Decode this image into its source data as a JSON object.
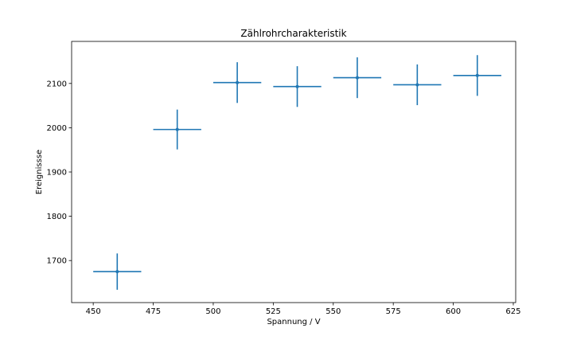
{
  "chart_data": {
    "type": "scatter",
    "title": "Zählrohrcharakteristik",
    "xlabel": "Spannung / V",
    "ylabel": "Ereignissse",
    "xlim": [
      441,
      626
    ],
    "ylim": [
      1605,
      2195
    ],
    "xticks": [
      450,
      475,
      500,
      525,
      550,
      575,
      600,
      625
    ],
    "yticks": [
      1700,
      1800,
      1900,
      2000,
      2100
    ],
    "grid": false,
    "color": "#1f77b4",
    "series": [
      {
        "x": [
          460,
          485,
          510,
          535,
          560,
          585,
          610
        ],
        "y": [
          1675,
          1996,
          2102,
          2093,
          2113,
          2097,
          2118
        ],
        "xerr": [
          10,
          10,
          10,
          10,
          10,
          10,
          10
        ],
        "yerr": [
          41,
          45,
          46,
          46,
          46,
          46,
          46
        ]
      }
    ]
  }
}
